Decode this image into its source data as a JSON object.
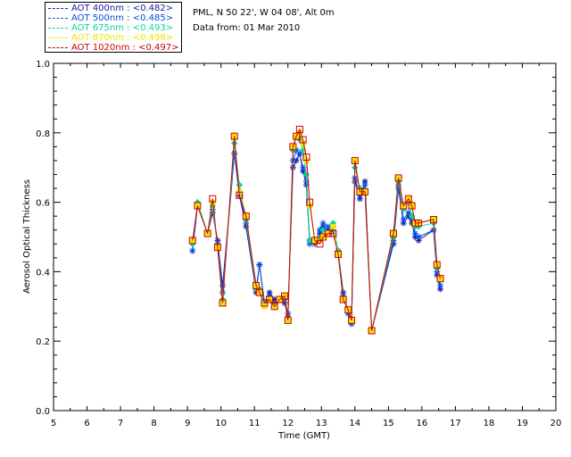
{
  "header": {
    "site": "PML, N 50 22', W 04 08', Alt 0m",
    "date": "Data from: 01 Mar 2010"
  },
  "legend": [
    {
      "text": "AOT  400nm : <0.482>",
      "color": "#1a1aa8"
    },
    {
      "text": "AOT  500nm : <0.485>",
      "color": "#0050e0"
    },
    {
      "text": "AOT  675nm : <0.493>",
      "color": "#00d8a0"
    },
    {
      "text": "AOT  870nm : <0.498>",
      "color": "#e8e800"
    },
    {
      "text": "AOT 1020nm : <0.497>",
      "color": "#d00000"
    }
  ],
  "chart_data": {
    "type": "line",
    "title": "",
    "xlabel": "Time (GMT)",
    "ylabel": "Aerosol Optical Thickness",
    "xlim": [
      5,
      20
    ],
    "ylim": [
      0.0,
      1.0
    ],
    "xticks": [
      "5",
      "6",
      "7",
      "8",
      "9",
      "10",
      "11",
      "12",
      "13",
      "14",
      "15",
      "16",
      "17",
      "18",
      "19",
      "20"
    ],
    "yticks": [
      "0.0",
      "0.2",
      "0.4",
      "0.6",
      "0.8",
      "1.0"
    ],
    "grid": false,
    "x": [
      9.15,
      9.3,
      9.6,
      9.75,
      9.9,
      10.05,
      10.4,
      10.55,
      10.75,
      11.05,
      11.15,
      11.3,
      11.45,
      11.6,
      11.75,
      11.9,
      12.0,
      12.15,
      12.25,
      12.35,
      12.45,
      12.55,
      12.65,
      12.8,
      12.95,
      13.05,
      13.2,
      13.35,
      13.5,
      13.65,
      13.8,
      13.9,
      14.0,
      14.15,
      14.3,
      14.5,
      15.15,
      15.3,
      15.45,
      15.6,
      15.7,
      15.8,
      15.9,
      16.35,
      16.45,
      16.55
    ],
    "series": [
      {
        "name": "AOT  400nm : <0.482>",
        "values": [
          0.46,
          0.59,
          0.51,
          0.57,
          0.49,
          0.36,
          0.74,
          0.62,
          0.53,
          0.34,
          0.42,
          0.31,
          0.34,
          0.32,
          0.32,
          0.31,
          0.27,
          0.7,
          0.72,
          0.74,
          0.69,
          0.65,
          0.49,
          0.49,
          0.51,
          0.53,
          0.52,
          0.52,
          0.46,
          0.34,
          0.28,
          0.25,
          0.66,
          0.61,
          0.66,
          0.23,
          0.48,
          0.64,
          0.54,
          0.56,
          0.54,
          0.5,
          0.49,
          0.52,
          0.39,
          0.35
        ]
      },
      {
        "name": "AOT  500nm : <0.485>",
        "values": [
          0.46,
          0.59,
          0.51,
          0.58,
          0.48,
          0.34,
          0.74,
          0.63,
          0.54,
          0.35,
          0.42,
          0.31,
          0.33,
          0.31,
          0.32,
          0.32,
          0.28,
          0.72,
          0.75,
          0.74,
          0.7,
          0.66,
          0.48,
          0.48,
          0.52,
          0.54,
          0.53,
          0.53,
          0.45,
          0.33,
          0.28,
          0.25,
          0.67,
          0.62,
          0.65,
          0.23,
          0.49,
          0.65,
          0.55,
          0.57,
          0.55,
          0.51,
          0.5,
          0.52,
          0.4,
          0.36
        ]
      },
      {
        "name": "AOT  675nm : <0.493>",
        "values": [
          0.48,
          0.6,
          0.51,
          0.59,
          0.47,
          0.32,
          0.77,
          0.65,
          0.55,
          0.35,
          0.35,
          0.31,
          0.32,
          0.3,
          0.32,
          0.33,
          0.26,
          0.75,
          0.79,
          0.78,
          0.75,
          0.68,
          0.49,
          0.49,
          0.5,
          0.52,
          0.51,
          0.54,
          0.46,
          0.32,
          0.29,
          0.26,
          0.7,
          0.64,
          0.63,
          0.23,
          0.5,
          0.66,
          0.58,
          0.6,
          0.56,
          0.53,
          0.53,
          0.54,
          0.41,
          0.38
        ]
      },
      {
        "name": "AOT  870nm : <0.498>",
        "values": [
          0.49,
          0.59,
          0.51,
          0.6,
          0.47,
          0.31,
          0.79,
          0.63,
          0.56,
          0.36,
          0.34,
          0.3,
          0.32,
          0.3,
          0.32,
          0.33,
          0.26,
          0.76,
          0.79,
          0.8,
          0.77,
          0.72,
          0.59,
          0.49,
          0.49,
          0.5,
          0.51,
          0.53,
          0.45,
          0.32,
          0.29,
          0.26,
          0.72,
          0.63,
          0.63,
          0.23,
          0.51,
          0.67,
          0.59,
          0.61,
          0.59,
          0.54,
          0.54,
          0.55,
          0.42,
          0.38
        ]
      },
      {
        "name": "AOT 1020nm : <0.497>",
        "values": [
          0.49,
          0.59,
          0.51,
          0.61,
          0.47,
          0.31,
          0.79,
          0.62,
          0.56,
          0.36,
          0.34,
          0.31,
          0.32,
          0.3,
          0.32,
          0.33,
          0.26,
          0.76,
          0.79,
          0.81,
          0.78,
          0.73,
          0.6,
          0.49,
          0.48,
          0.5,
          0.51,
          0.51,
          0.45,
          0.32,
          0.29,
          0.26,
          0.72,
          0.63,
          0.63,
          0.23,
          0.51,
          0.67,
          0.59,
          0.61,
          0.59,
          0.54,
          0.54,
          0.55,
          0.42,
          0.38
        ]
      }
    ]
  }
}
